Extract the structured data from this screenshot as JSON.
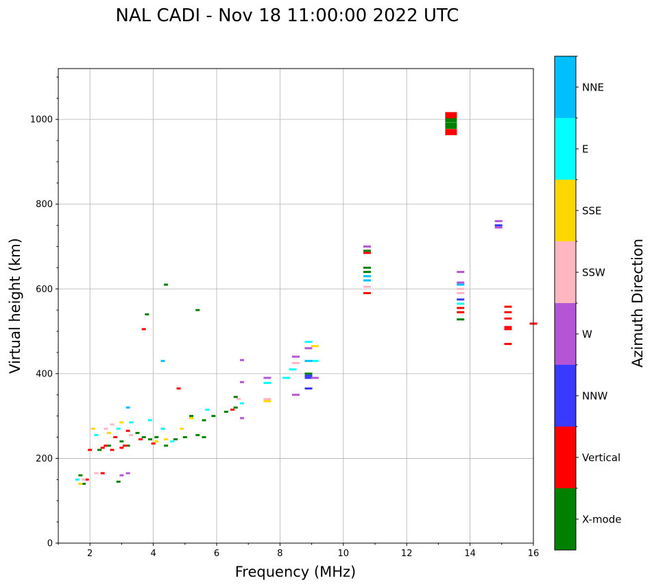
{
  "chart_data": {
    "type": "scatter",
    "title": "NAL CADI - Nov 18 11:00:00 2022 UTC",
    "xlabel": "Frequency (MHz)",
    "ylabel": "Virtual height (km)",
    "xlim": [
      1,
      16
    ],
    "ylim": [
      0,
      1120
    ],
    "xticks": [
      2,
      4,
      6,
      8,
      10,
      12,
      14,
      16
    ],
    "xtick_labels": [
      "2",
      "4",
      "6",
      "8",
      "10",
      "12",
      "14",
      "16"
    ],
    "yticks": [
      0,
      200,
      400,
      600,
      800,
      1000
    ],
    "ytick_labels": [
      "0",
      "200",
      "400",
      "600",
      "800",
      "1000"
    ],
    "grid": true,
    "colorbar": {
      "title": "Azimuth Direction",
      "categories": [
        {
          "label": "X-mode",
          "color": "#008000"
        },
        {
          "label": "Vertical",
          "color": "#ff0000"
        },
        {
          "label": "NNW",
          "color": "#3a3aff"
        },
        {
          "label": "W",
          "color": "#b455d6"
        },
        {
          "label": "SSW",
          "color": "#ffb6c1"
        },
        {
          "label": "SSE",
          "color": "#ffd700"
        },
        {
          "label": "E",
          "color": "#00ffff"
        },
        {
          "label": "NNE",
          "color": "#00bfff"
        }
      ]
    },
    "series": [
      {
        "name": "X-mode",
        "points": [
          [
            1.7,
            160
          ],
          [
            1.8,
            140
          ],
          [
            2.3,
            220
          ],
          [
            2.6,
            230
          ],
          [
            2.9,
            145
          ],
          [
            3.0,
            240
          ],
          [
            3.2,
            230
          ],
          [
            3.5,
            260
          ],
          [
            3.7,
            250
          ],
          [
            3.9,
            245
          ],
          [
            4.1,
            250
          ],
          [
            4.3,
            270
          ],
          [
            4.4,
            230
          ],
          [
            4.7,
            245
          ],
          [
            5.0,
            250
          ],
          [
            5.2,
            300
          ],
          [
            5.4,
            255
          ],
          [
            5.6,
            250
          ],
          [
            5.6,
            290
          ],
          [
            5.9,
            300
          ],
          [
            6.3,
            310
          ],
          [
            6.6,
            320
          ],
          [
            6.6,
            345
          ],
          [
            3.8,
            540
          ],
          [
            4.4,
            610
          ],
          [
            5.4,
            550
          ],
          [
            8.9,
            400
          ],
          [
            10.75,
            640
          ],
          [
            10.75,
            650
          ],
          [
            10.75,
            690
          ],
          [
            13.4,
            985
          ],
          [
            13.4,
            1000
          ],
          [
            13.7,
            528
          ]
        ]
      },
      {
        "name": "Vertical",
        "points": [
          [
            1.9,
            150
          ],
          [
            2.0,
            220
          ],
          [
            2.4,
            225
          ],
          [
            2.5,
            230
          ],
          [
            2.7,
            220
          ],
          [
            2.8,
            250
          ],
          [
            3.0,
            225
          ],
          [
            3.1,
            230
          ],
          [
            3.2,
            265
          ],
          [
            3.6,
            245
          ],
          [
            4.0,
            235
          ],
          [
            2.4,
            165
          ],
          [
            3.7,
            505
          ],
          [
            4.8,
            365
          ],
          [
            6.5,
            315
          ],
          [
            10.75,
            590
          ],
          [
            10.75,
            685
          ],
          [
            13.4,
            970
          ],
          [
            13.4,
            1010
          ],
          [
            13.7,
            545
          ],
          [
            13.7,
            555
          ],
          [
            15.2,
            470
          ],
          [
            15.2,
            505
          ],
          [
            15.2,
            510
          ],
          [
            15.2,
            530
          ],
          [
            15.2,
            545
          ],
          [
            15.2,
            558
          ],
          [
            16.0,
            518
          ]
        ]
      },
      {
        "name": "NNW",
        "points": [
          [
            8.9,
            365
          ],
          [
            8.9,
            390
          ],
          [
            8.9,
            395
          ],
          [
            13.7,
            575
          ],
          [
            14.9,
            750
          ]
        ]
      },
      {
        "name": "W",
        "points": [
          [
            3.0,
            160
          ],
          [
            3.2,
            165
          ],
          [
            6.8,
            295
          ],
          [
            6.8,
            380
          ],
          [
            6.8,
            432
          ],
          [
            7.6,
            390
          ],
          [
            8.5,
            350
          ],
          [
            8.5,
            440
          ],
          [
            8.9,
            460
          ],
          [
            9.1,
            390
          ],
          [
            10.75,
            700
          ],
          [
            13.7,
            640
          ],
          [
            13.7,
            615
          ],
          [
            14.9,
            760
          ],
          [
            14.9,
            745
          ]
        ]
      },
      {
        "name": "SSW",
        "points": [
          [
            1.8,
            150
          ],
          [
            2.2,
            165
          ],
          [
            2.5,
            270
          ],
          [
            2.7,
            280
          ],
          [
            3.3,
            255
          ],
          [
            6.7,
            340
          ],
          [
            7.6,
            340
          ],
          [
            8.5,
            425
          ],
          [
            10.75,
            605
          ],
          [
            13.7,
            600
          ],
          [
            13.7,
            590
          ]
        ]
      },
      {
        "name": "SSE",
        "points": [
          [
            1.7,
            140
          ],
          [
            2.1,
            270
          ],
          [
            2.6,
            260
          ],
          [
            3.0,
            285
          ],
          [
            4.1,
            240
          ],
          [
            4.4,
            245
          ],
          [
            4.9,
            270
          ],
          [
            5.2,
            295
          ],
          [
            7.6,
            335
          ],
          [
            9.1,
            465
          ]
        ]
      },
      {
        "name": "E",
        "points": [
          [
            1.6,
            150
          ],
          [
            2.2,
            255
          ],
          [
            2.9,
            270
          ],
          [
            3.3,
            285
          ],
          [
            3.9,
            290
          ],
          [
            4.3,
            270
          ],
          [
            4.6,
            240
          ],
          [
            5.7,
            315
          ],
          [
            6.8,
            330
          ],
          [
            7.6,
            378
          ],
          [
            8.2,
            390
          ],
          [
            8.4,
            410
          ],
          [
            8.9,
            475
          ],
          [
            9.1,
            430
          ],
          [
            13.7,
            565
          ]
        ]
      },
      {
        "name": "NNE",
        "points": [
          [
            3.2,
            320
          ],
          [
            4.3,
            430
          ],
          [
            8.9,
            430
          ],
          [
            10.75,
            620
          ],
          [
            10.75,
            630
          ],
          [
            13.7,
            610
          ]
        ]
      }
    ]
  }
}
